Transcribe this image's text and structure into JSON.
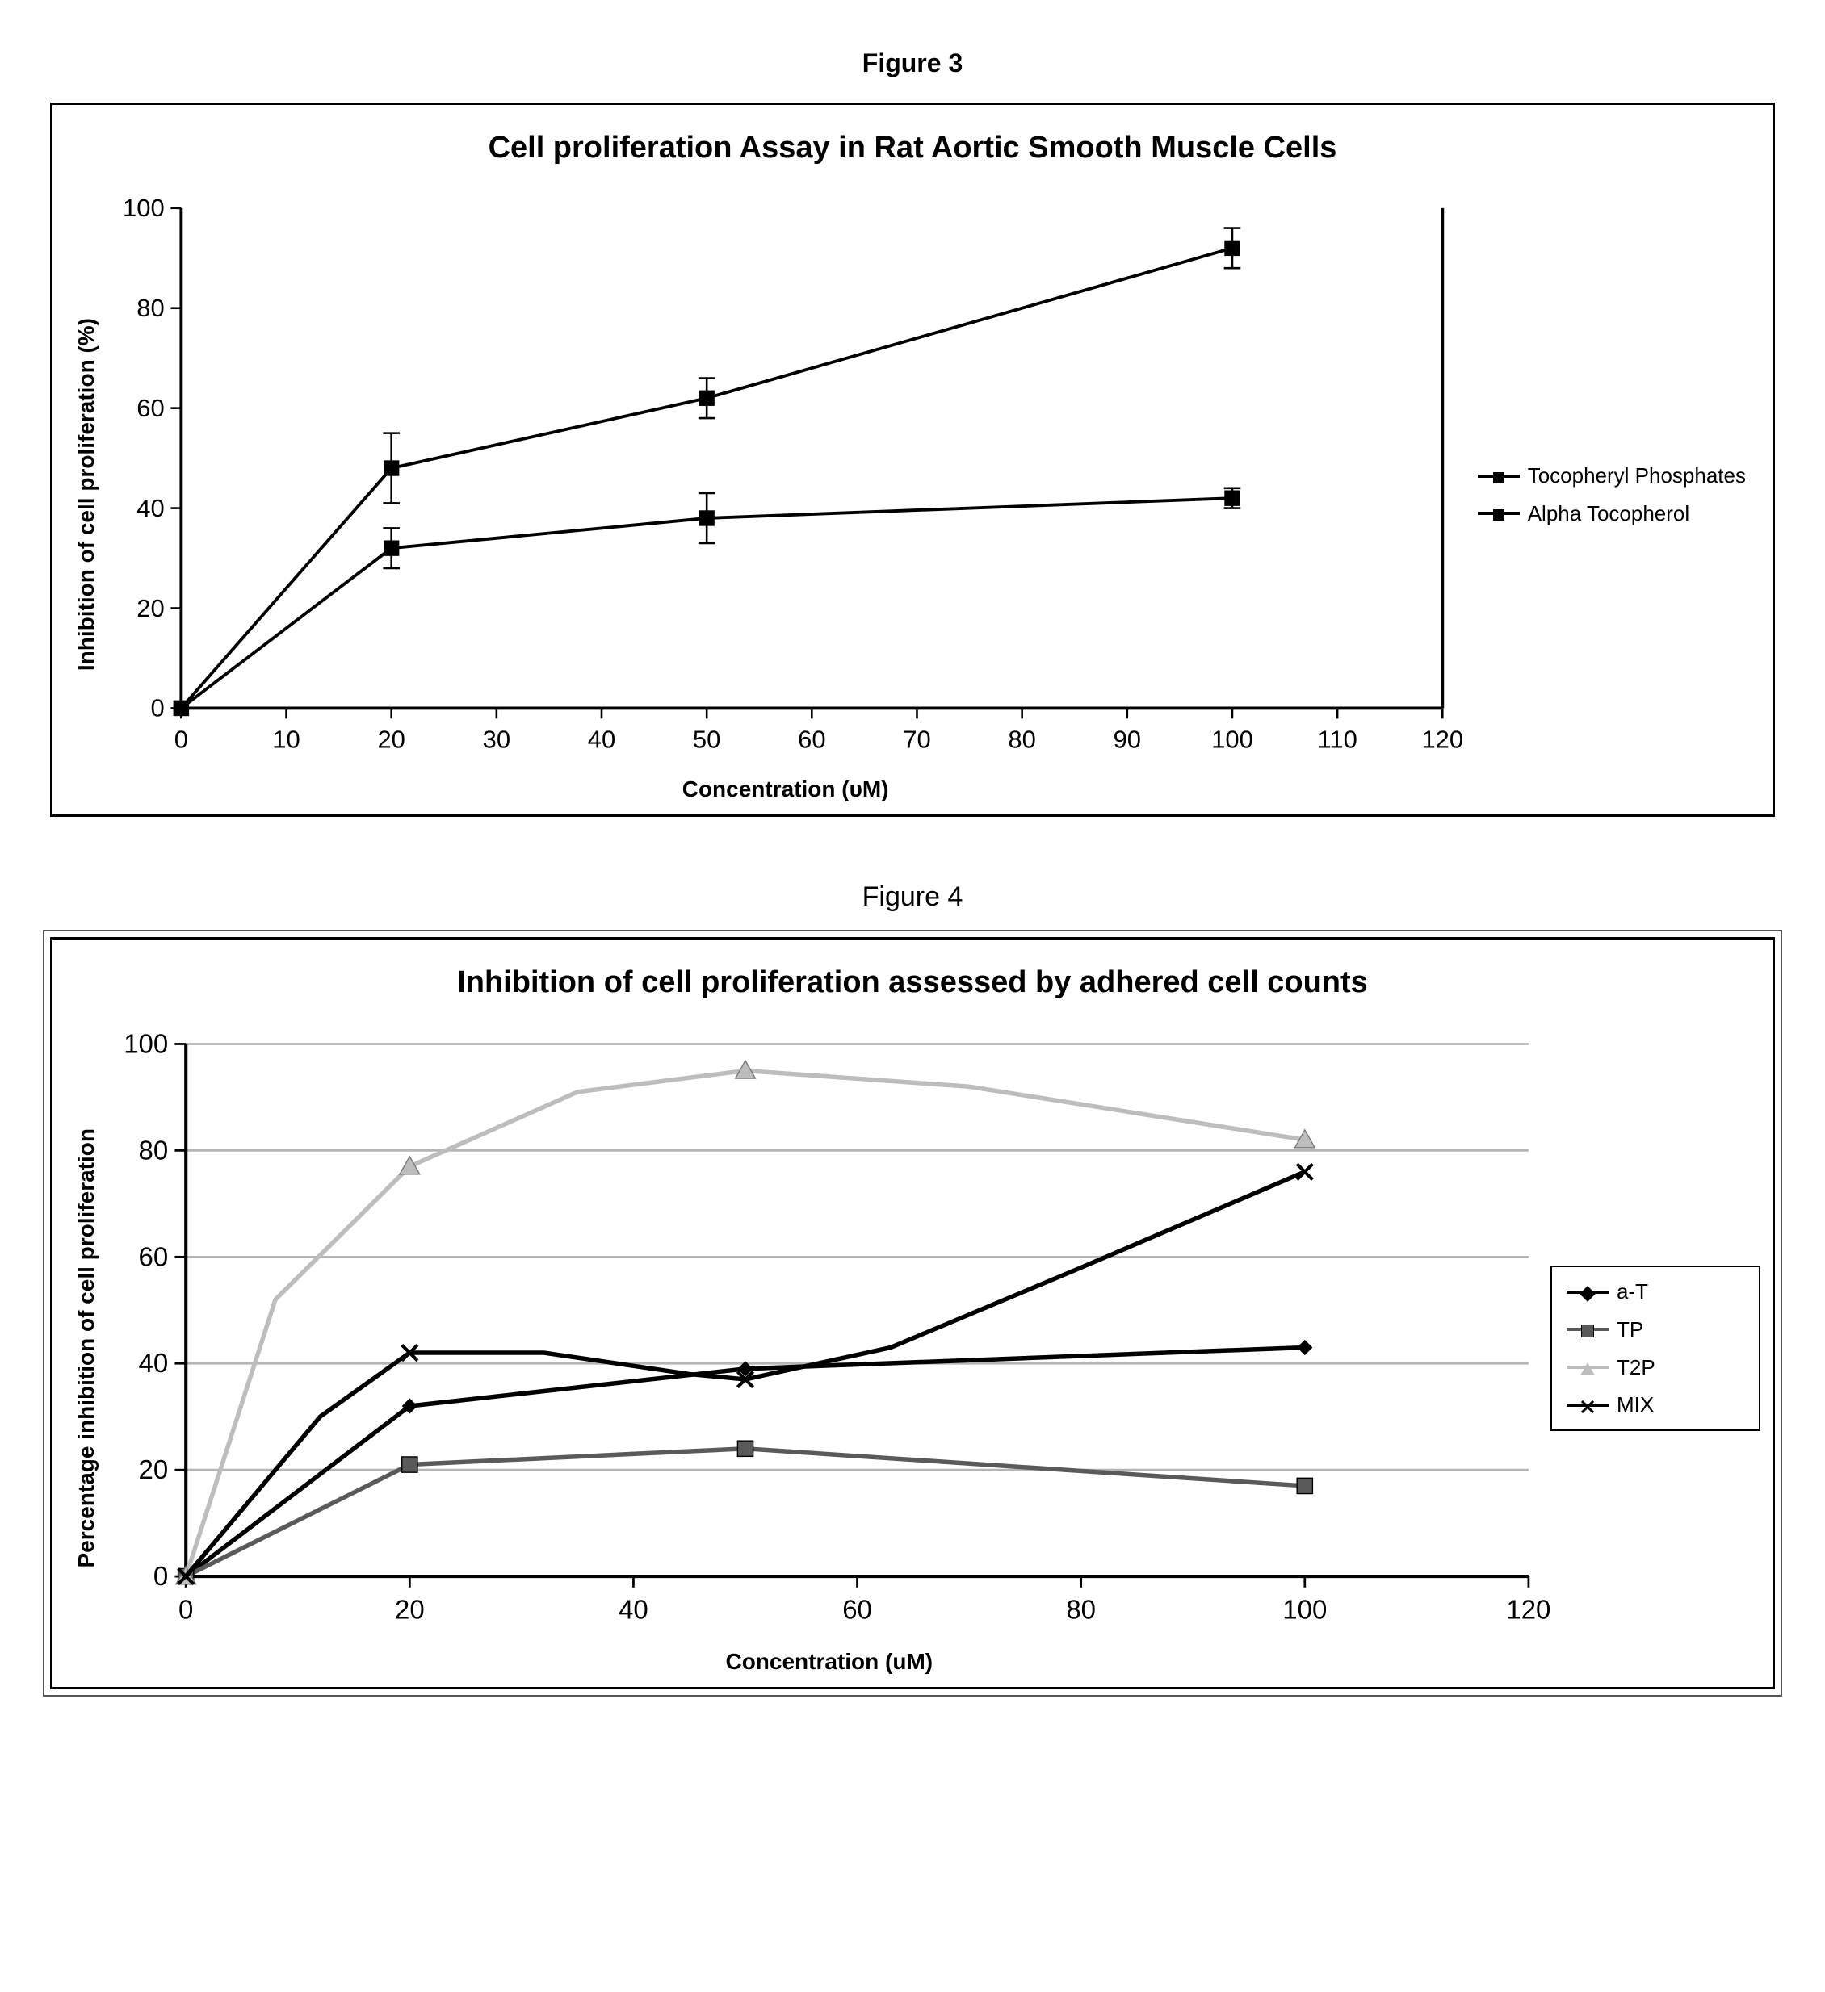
{
  "figure3": {
    "caption": "Figure 3",
    "type": "line",
    "title": "Cell proliferation Assay in Rat Aortic Smooth Muscle Cells",
    "xlabel": "Concentration (υM)",
    "ylabel": "Inhibition of cell proliferation (%)",
    "xlim": [
      0,
      120
    ],
    "ylim": [
      0,
      100
    ],
    "xticks": [
      0,
      10,
      20,
      30,
      40,
      50,
      60,
      70,
      80,
      90,
      100,
      110,
      120
    ],
    "yticks": [
      0,
      20,
      40,
      60,
      80,
      100
    ],
    "axis_color": "#000000",
    "tick_fontsize": 24,
    "axis_weight": 3,
    "background_color": "#ffffff",
    "grid": false,
    "marker": "square",
    "marker_size": 14,
    "line_width": 3,
    "line_color": "#000000",
    "error_bar_halfwidth": 3,
    "series": [
      {
        "label": "Tocopheryl Phosphates",
        "x": [
          0,
          20,
          50,
          100
        ],
        "y": [
          0,
          48,
          62,
          92
        ],
        "err": [
          0,
          7,
          4,
          4
        ]
      },
      {
        "label": "Alpha Tocopherol",
        "x": [
          0,
          20,
          50,
          100
        ],
        "y": [
          0,
          32,
          38,
          42
        ],
        "err": [
          0,
          4,
          5,
          2
        ]
      }
    ],
    "legend_pos": "right-outside"
  },
  "figure4": {
    "caption": "Figure 4",
    "type": "line",
    "title": "Inhibition of cell proliferation assessed by adhered cell counts",
    "xlabel": "Concentration (uM)",
    "ylabel": "Percentage inhibition of cell proliferation",
    "xlim": [
      0,
      120
    ],
    "ylim": [
      0,
      100
    ],
    "xticks": [
      0,
      20,
      40,
      60,
      80,
      100,
      120
    ],
    "yticks": [
      0,
      20,
      40,
      60,
      80,
      100
    ],
    "axis_color": "#000000",
    "tick_fontsize": 24,
    "axis_weight": 3,
    "background_color": "#ffffff",
    "grid": true,
    "grid_color": "#b5b5b5",
    "line_width": 4,
    "marker_size": 14,
    "series": [
      {
        "label": "a-T",
        "marker": "diamond",
        "color": "#000000",
        "x": [
          0,
          20,
          50,
          100
        ],
        "y": [
          0,
          32,
          39,
          43
        ]
      },
      {
        "label": "TP",
        "marker": "square",
        "color": "#5a5a5a",
        "x": [
          0,
          20,
          50,
          100
        ],
        "y": [
          0,
          21,
          24,
          17
        ]
      },
      {
        "label": "T2P",
        "marker": "triangle",
        "color": "#bdbdbd",
        "x": [
          0,
          20,
          50,
          100
        ],
        "y": [
          0,
          77,
          95,
          82
        ],
        "curve": [
          [
            0,
            0
          ],
          [
            8,
            52
          ],
          [
            20,
            77
          ],
          [
            35,
            91
          ],
          [
            50,
            95
          ],
          [
            70,
            92
          ],
          [
            85,
            87
          ],
          [
            100,
            82
          ]
        ]
      },
      {
        "label": "MIX",
        "marker": "x",
        "color": "#000000",
        "x": [
          0,
          20,
          50,
          100
        ],
        "y": [
          0,
          42,
          37,
          76
        ],
        "curve": [
          [
            0,
            0
          ],
          [
            12,
            30
          ],
          [
            20,
            42
          ],
          [
            32,
            42
          ],
          [
            45,
            38
          ],
          [
            50,
            37
          ],
          [
            63,
            43
          ],
          [
            80,
            58
          ],
          [
            100,
            76
          ]
        ]
      }
    ],
    "legend_pos": "right-outside-boxed"
  }
}
